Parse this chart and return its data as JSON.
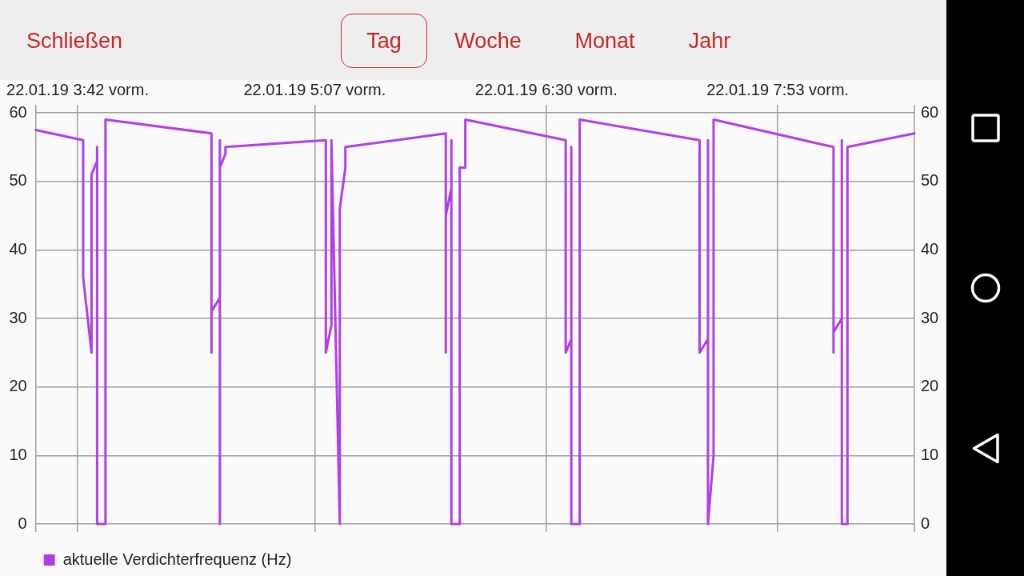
{
  "chart_data": {
    "type": "line",
    "annotations": [
      "Schließen",
      "Tag",
      "Woche",
      "Monat",
      "Jahr"
    ],
    "x": [
      "--01-22T03:27",
      "--01-22T03:44",
      "--01-22T03:44",
      "--01-22T03:47",
      "--01-22T03:47",
      "--01-22T03:49",
      "--01-22T03:49",
      "--01-22T03:49",
      "--01-22T03:52",
      "--01-22T03:52",
      "--01-22T04:30",
      "--01-22T04:30",
      "--01-22T04:30",
      "--01-22T04:33",
      "--01-22T04:33",
      "--01-22T04:33",
      "--01-22T04:33",
      "--01-22T04:35",
      "--01-22T04:35",
      "--01-22T05:11",
      "--01-22T05:11",
      "--01-22T05:13",
      "--01-22T05:13",
      "--01-22T05:16",
      "--01-22T05:16",
      "--01-22T05:18",
      "--01-22T05:18",
      "--01-22T05:54",
      "--01-22T05:54",
      "--01-22T05:54",
      "--01-22T05:56",
      "--01-22T05:56",
      "--01-22T05:56",
      "--01-22T05:59",
      "--01-22T05:59",
      "--01-22T06:01",
      "--01-22T06:01",
      "--01-22T06:37",
      "--01-22T06:37",
      "--01-22T06:39",
      "--01-22T06:39",
      "--01-22T06:39",
      "--01-22T06:42",
      "--01-22T06:42",
      "--01-22T07:25",
      "--01-22T07:25",
      "--01-22T07:28",
      "--01-22T07:28",
      "--01-22T07:28",
      "--01-22T07:30",
      "--01-22T07:30",
      "--01-22T08:13",
      "--01-22T08:13",
      "--01-22T08:13",
      "--01-22T08:16",
      "--01-22T08:16",
      "--01-22T08:16",
      "--01-22T08:18",
      "--01-22T08:18",
      "--01-22T08:42"
    ],
    "series": [
      {
        "name": "aktuelle Verdichterfrequenz (Hz)",
        "color": "#b03fe6",
        "values": [
          57.5,
          56,
          36,
          25,
          51,
          53,
          55,
          0,
          0,
          59,
          57,
          25,
          31,
          33,
          56,
          0,
          52,
          54,
          55,
          56,
          25,
          29,
          56,
          0,
          46,
          52,
          55,
          57,
          25,
          45,
          49,
          56,
          0,
          0,
          52,
          52,
          59,
          56,
          25,
          27,
          55,
          0,
          0,
          59,
          56,
          25,
          27,
          56,
          0,
          10,
          59,
          55,
          25,
          28,
          30,
          56,
          0,
          0,
          55,
          57
        ]
      }
    ],
    "xlim": [
      "--01-22T03:27",
      "--01-22T08:42"
    ],
    "xticks": [
      {
        "value": "--01-22T03:42",
        "label": "22.01.19 3:42 vorm."
      },
      {
        "value": "--01-22T05:07",
        "label": "22.01.19 5:07 vorm."
      },
      {
        "value": "--01-22T06:30",
        "label": "22.01.19 6:30 vorm."
      },
      {
        "value": "--01-22T07:53",
        "label": "22.01.19 7:53 vorm."
      }
    ],
    "ylim": [
      0,
      60
    ],
    "yticks": [
      0,
      10,
      20,
      30,
      40,
      50,
      60
    ],
    "y2lim": [
      0,
      60
    ],
    "y2ticks": [
      0,
      10,
      20,
      30,
      40,
      50,
      60
    ],
    "grid": true,
    "legend": "bottom left"
  }
}
